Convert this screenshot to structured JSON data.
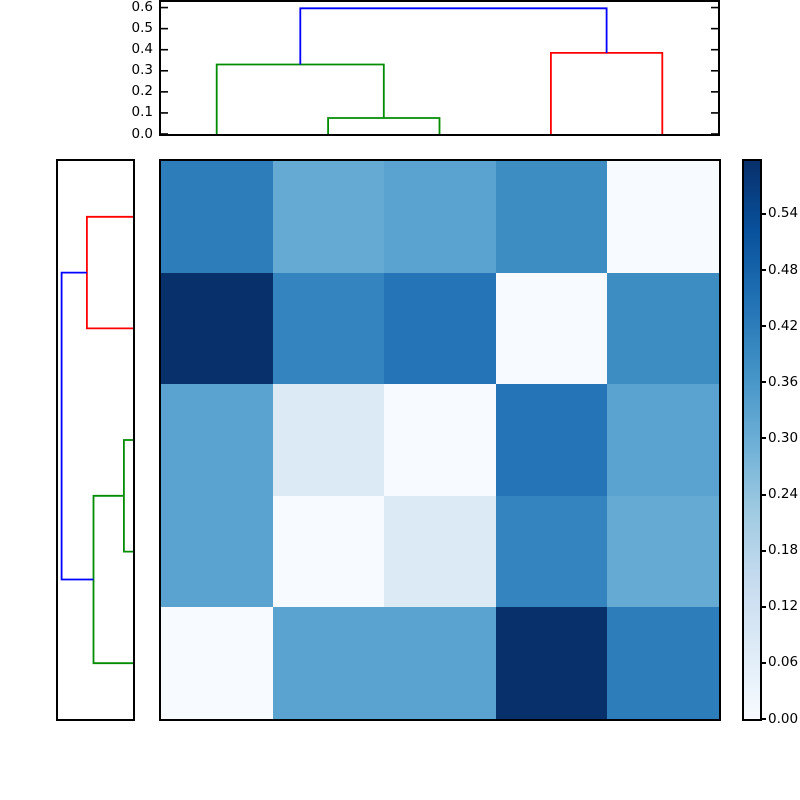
{
  "chart_data": {
    "type": "heatmap",
    "title": "",
    "description": "Hierarchically clustered 5x5 distance-matrix heatmap (Blues colormap) with a column dendrogram on top, a row dendrogram on the left, and a vertical colorbar on the right",
    "grid": "off",
    "legend": "none",
    "matrix": {
      "n_rows": 5,
      "n_cols": 5,
      "vmin": 0.0,
      "vmax": 0.5966,
      "values": [
        [
          0.42,
          0.31,
          0.33,
          0.385,
          0.0
        ],
        [
          0.5966,
          0.405,
          0.44,
          0.0,
          0.385
        ],
        [
          0.33,
          0.08,
          0.0,
          0.44,
          0.33
        ],
        [
          0.33,
          0.0,
          0.08,
          0.405,
          0.31
        ],
        [
          0.0,
          0.33,
          0.33,
          0.5966,
          0.42
        ]
      ]
    },
    "colormap": {
      "name": "Blues",
      "stops": [
        {
          "t": 0.0,
          "color": "#f7fbff"
        },
        {
          "t": 0.125,
          "color": "#deebf7"
        },
        {
          "t": 0.25,
          "color": "#c6dbef"
        },
        {
          "t": 0.375,
          "color": "#9ecae1"
        },
        {
          "t": 0.5,
          "color": "#6baed6"
        },
        {
          "t": 0.625,
          "color": "#4292c6"
        },
        {
          "t": 0.75,
          "color": "#2171b5"
        },
        {
          "t": 0.875,
          "color": "#08519c"
        },
        {
          "t": 1.0,
          "color": "#08306b"
        }
      ]
    },
    "colorbar": {
      "position": "right",
      "tick_values": [
        0.0,
        0.06,
        0.12,
        0.18,
        0.24,
        0.3,
        0.36,
        0.42,
        0.48,
        0.54
      ],
      "tick_labels": [
        "0.00",
        "0.06",
        "0.12",
        "0.18",
        "0.24",
        "0.30",
        "0.36",
        "0.42",
        "0.48",
        "0.54"
      ]
    },
    "top_dendrogram": {
      "orientation": "top",
      "axis_max": 0.6264,
      "tick_values": [
        0.0,
        0.1,
        0.2,
        0.3,
        0.4,
        0.5,
        0.6
      ],
      "tick_labels": [
        "0.0",
        "0.1",
        "0.2",
        "0.3",
        "0.4",
        "0.5",
        "0.6"
      ],
      "leaf_positions": [
        0.1,
        0.3,
        0.5,
        0.7,
        0.9
      ],
      "links": [
        {
          "a": 0.3,
          "b": 0.5,
          "ha": 0.0,
          "hb": 0.0,
          "h": 0.076,
          "color": "#008c00"
        },
        {
          "a": 0.1,
          "b": 0.4,
          "ha": 0.0,
          "hb": 0.076,
          "h": 0.33,
          "color": "#008c00"
        },
        {
          "a": 0.7,
          "b": 0.9,
          "ha": 0.0,
          "hb": 0.0,
          "h": 0.385,
          "color": "#ff0000"
        },
        {
          "a": 0.25,
          "b": 0.8,
          "ha": 0.33,
          "hb": 0.385,
          "h": 0.5966,
          "color": "#0000ff"
        }
      ]
    },
    "left_dendrogram": {
      "orientation": "left",
      "axis_max": 0.6264,
      "tick_labels": [],
      "leaf_positions": [
        0.1,
        0.3,
        0.5,
        0.7,
        0.9
      ],
      "links": [
        {
          "a": 0.1,
          "b": 0.3,
          "ha": 0.0,
          "hb": 0.0,
          "h": 0.385,
          "color": "#ff0000"
        },
        {
          "a": 0.5,
          "b": 0.7,
          "ha": 0.0,
          "hb": 0.0,
          "h": 0.076,
          "color": "#008c00"
        },
        {
          "a": 0.6,
          "b": 0.9,
          "ha": 0.076,
          "hb": 0.0,
          "h": 0.33,
          "color": "#008c00"
        },
        {
          "a": 0.2,
          "b": 0.75,
          "ha": 0.385,
          "hb": 0.33,
          "h": 0.5966,
          "color": "#0000ff"
        }
      ]
    },
    "merge_heights": {
      "green_pair": 0.076,
      "green_outer": 0.33,
      "red_pair": 0.385,
      "root": 0.5966
    },
    "style": {
      "background": "#ffffff",
      "spine_color": "#000000",
      "spine_width": 2,
      "link_width": 1.8,
      "tick_length": 7
    }
  }
}
